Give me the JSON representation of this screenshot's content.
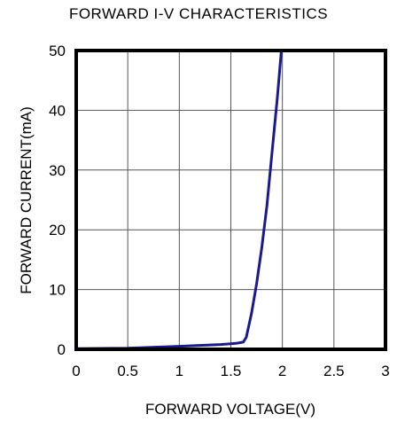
{
  "chart_data": {
    "type": "line",
    "title": "FORWARD I-V CHARACTERISTICS",
    "xlabel": "FORWARD VOLTAGE(V)",
    "ylabel": "FORWARD CURRENT(mA)",
    "xlim": [
      0,
      3
    ],
    "ylim": [
      0,
      50
    ],
    "xticks": [
      0,
      0.5,
      1,
      1.5,
      2,
      2.5,
      3
    ],
    "xtick_labels": [
      "0",
      "0.5",
      "1",
      "1.5",
      "2",
      "2.5",
      "3"
    ],
    "yticks": [
      0,
      10,
      20,
      30,
      40,
      50
    ],
    "ytick_labels": [
      "0",
      "10",
      "20",
      "30",
      "40",
      "50"
    ],
    "grid": true,
    "series": [
      {
        "color": "#1a1a8c",
        "x": [
          0,
          0.5,
          1.0,
          1.4,
          1.55,
          1.62,
          1.65,
          1.7,
          1.75,
          1.8,
          1.85,
          1.9,
          1.95,
          1.99
        ],
        "y": [
          0.1,
          0.2,
          0.5,
          0.8,
          1.0,
          1.2,
          2.0,
          6.0,
          11.0,
          17.0,
          24.0,
          33.0,
          42.0,
          50.0
        ]
      }
    ]
  }
}
